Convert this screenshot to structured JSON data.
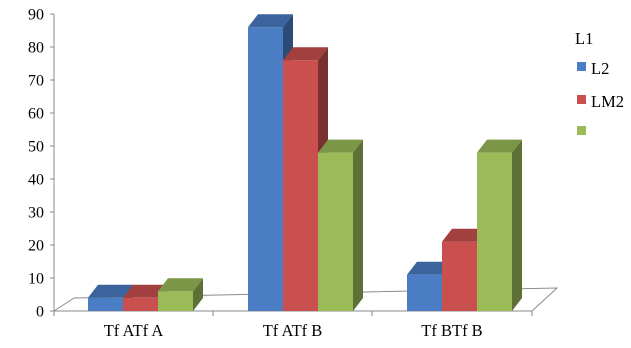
{
  "chart_data": {
    "type": "bar",
    "categories": [
      "Tf ATf A",
      "Tf ATf B",
      "Tf BTf B"
    ],
    "series": [
      {
        "name": "L2",
        "color": "#4a7dc4",
        "values": [
          4,
          86,
          11
        ]
      },
      {
        "name": "LM2",
        "color": "#c9504e",
        "values": [
          4,
          76,
          21
        ]
      },
      {
        "name": "",
        "color": "#9bbb59",
        "values": [
          6,
          48,
          48
        ]
      }
    ],
    "legend_title": "L1",
    "yticks": [
      0,
      10,
      20,
      30,
      40,
      50,
      60,
      70,
      80,
      90
    ],
    "ylim": [
      0,
      90
    ],
    "grid": false,
    "legend_position": "right",
    "style": "3d-clustered-column"
  }
}
